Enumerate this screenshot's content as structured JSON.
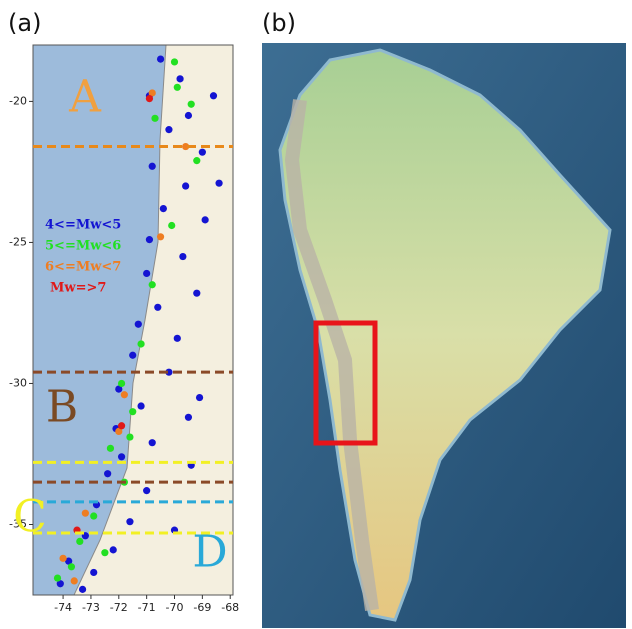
{
  "panel_a": {
    "label": "(a)"
  },
  "panel_b": {
    "label": "(b)"
  },
  "chart_data": {
    "type": "scatter",
    "xlim": [
      -75.08,
      -67.9
    ],
    "ylim": [
      -37.5,
      -18.0
    ],
    "xticks": [
      -74,
      -73,
      -72,
      -71,
      -70,
      -69,
      -68
    ],
    "yticks": [
      -20,
      -25,
      -30,
      -35
    ],
    "series": [
      {
        "name": "4<=Mw<5",
        "color": "#1414d2",
        "x": [
          -70.5,
          -69.8,
          -70.9,
          -69.5,
          -70.2,
          -69.0,
          -70.8,
          -69.6,
          -70.4,
          -68.9,
          -70.9,
          -69.7,
          -71.0,
          -69.2,
          -70.6,
          -71.3,
          -69.9,
          -71.5,
          -70.2,
          -72.0,
          -71.2,
          -69.5,
          -72.1,
          -70.8,
          -71.9,
          -69.4,
          -72.4,
          -71.0,
          -72.8,
          -71.6,
          -73.2,
          -72.2,
          -73.8,
          -72.9,
          -74.1,
          -73.3,
          -68.6,
          -68.4,
          -69.1,
          -70.0
        ],
        "values": [
          -18.5,
          -19.2,
          -19.8,
          -20.5,
          -21.0,
          -21.8,
          -22.3,
          -23.0,
          -23.8,
          -24.2,
          -24.9,
          -25.5,
          -26.1,
          -26.8,
          -27.3,
          -27.9,
          -28.4,
          -29.0,
          -29.6,
          -30.2,
          -30.8,
          -31.2,
          -31.6,
          -32.1,
          -32.6,
          -32.9,
          -33.2,
          -33.8,
          -34.3,
          -34.9,
          -35.4,
          -35.9,
          -36.3,
          -36.7,
          -37.1,
          -37.3,
          -19.8,
          -22.9,
          -30.5,
          -35.2
        ]
      },
      {
        "name": "5<=Mw<6",
        "color": "#22e022",
        "x": [
          -70.0,
          -69.4,
          -70.7,
          -69.2,
          -70.1,
          -70.8,
          -71.2,
          -71.9,
          -71.5,
          -72.3,
          -71.8,
          -72.9,
          -73.4,
          -73.7,
          -74.2,
          -72.5,
          -69.9,
          -71.6
        ],
        "values": [
          -18.6,
          -20.1,
          -20.6,
          -22.1,
          -24.4,
          -26.5,
          -28.6,
          -30.0,
          -31.0,
          -32.3,
          -33.5,
          -34.7,
          -35.6,
          -36.5,
          -36.9,
          -36.0,
          -19.5,
          -31.9
        ]
      },
      {
        "name": "6<=Mw<7",
        "color": "#ee7d22",
        "x": [
          -70.8,
          -69.6,
          -71.8,
          -72.0,
          -73.2,
          -74.0,
          -73.6,
          -70.5
        ],
        "values": [
          -19.7,
          -21.6,
          -30.4,
          -31.7,
          -34.6,
          -36.2,
          -37.0,
          -24.8
        ]
      },
      {
        "name": "Mw=>7",
        "color": "#e01818",
        "x": [
          -70.9,
          -71.9,
          -73.5
        ],
        "values": [
          -19.9,
          -31.5,
          -35.2
        ]
      }
    ],
    "boundaries": [
      {
        "value": -21.6,
        "color": "#e8891a"
      },
      {
        "value": -29.6,
        "color": "#8b4a28"
      },
      {
        "value": -32.8,
        "color": "#f2f024"
      },
      {
        "value": -33.5,
        "color": "#8b4a28"
      },
      {
        "value": -34.2,
        "color": "#29a9d8"
      },
      {
        "value": -35.3,
        "color": "#f2f024"
      }
    ],
    "zones": [
      {
        "label": "A",
        "color": "#f0a040"
      },
      {
        "label": "B",
        "color": "#7a4a24"
      },
      {
        "label": "C",
        "color": "#f2f024"
      },
      {
        "label": "D",
        "color": "#29a9d8"
      }
    ]
  }
}
